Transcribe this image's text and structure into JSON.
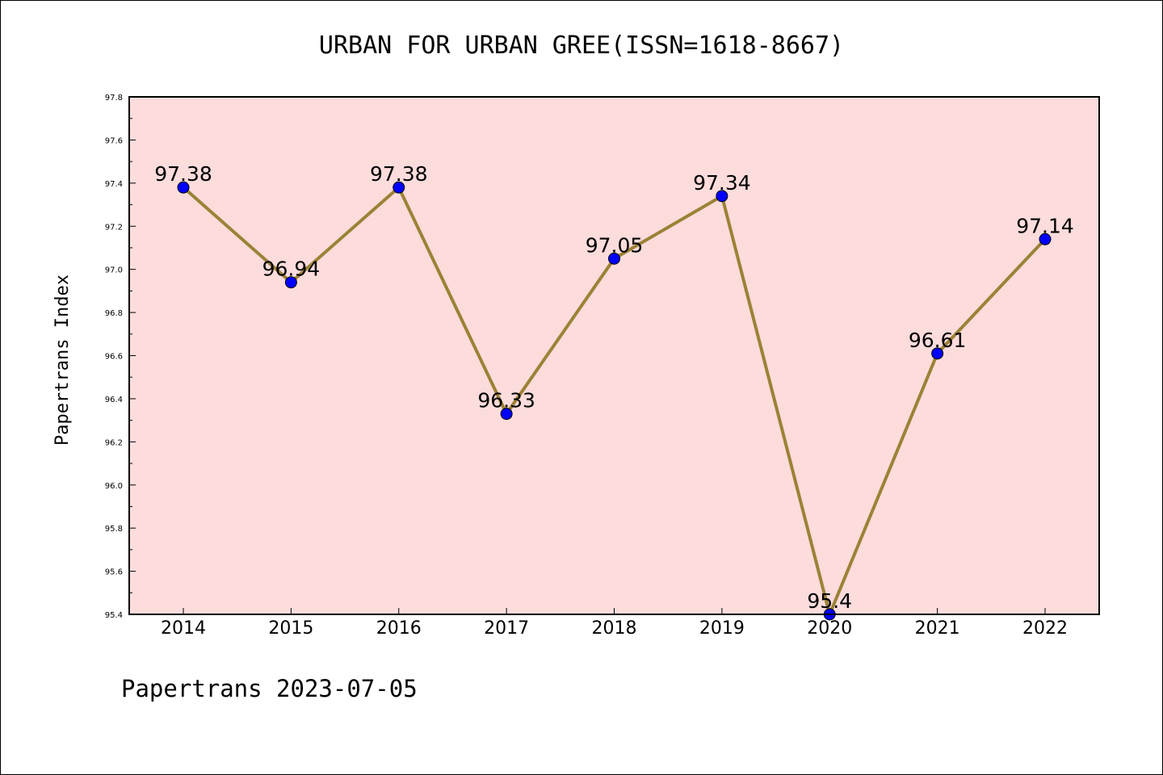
{
  "chart_data": {
    "type": "line",
    "title": "URBAN FOR URBAN GREE(ISSN=1618-8667)",
    "ylabel": "Papertrans Index",
    "xlabel": "",
    "categories": [
      "2014",
      "2015",
      "2016",
      "2017",
      "2018",
      "2019",
      "2020",
      "2021",
      "2022"
    ],
    "series": [
      {
        "values": [
          97.38,
          96.94,
          97.38,
          96.33,
          97.05,
          97.34,
          95.4,
          96.61,
          97.14
        ]
      }
    ],
    "data_labels": [
      "97.38",
      "96.94",
      "97.38",
      "96.33",
      "97.05",
      "97.34",
      "95.4",
      "96.61",
      "97.14"
    ],
    "ylim": [
      95.4,
      97.8
    ],
    "yticks": [
      "95.4",
      "95.6",
      "95.8",
      "96.0",
      "96.2",
      "96.4",
      "96.6",
      "96.8",
      "97.0",
      "97.2",
      "97.4",
      "97.6",
      "97.8"
    ],
    "grid": false,
    "legend": "none",
    "colors": {
      "plot_background": "#fddcdc",
      "line": "#9b8236",
      "marker": "#0000ff"
    }
  },
  "footer": {
    "text": "Papertrans 2023-07-05"
  }
}
